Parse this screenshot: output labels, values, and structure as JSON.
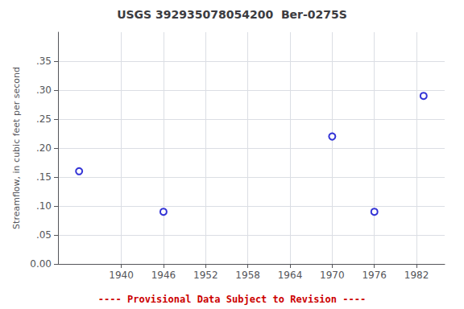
{
  "chart_data": {
    "type": "scatter",
    "title": "USGS 392935078054200  Ber-0275S",
    "ylabel": "Streamflow, in cubic feet per second",
    "x": [
      1934,
      1946,
      1970,
      1976,
      1983
    ],
    "values": [
      0.16,
      0.09,
      0.22,
      0.09,
      0.29
    ],
    "color": "#0000CC",
    "marker": "circle",
    "xlim": [
      1931,
      1986
    ],
    "ylim": [
      0.0,
      0.4
    ],
    "xticks": [
      1940,
      1946,
      1952,
      1958,
      1964,
      1970,
      1976,
      1982
    ],
    "yticks": [
      {
        "value": 0.0,
        "label": "0.00"
      },
      {
        "value": 0.05,
        "label": ".05"
      },
      {
        "value": 0.1,
        "label": ".10"
      },
      {
        "value": 0.15,
        "label": ".15"
      },
      {
        "value": 0.2,
        "label": ".20"
      },
      {
        "value": 0.25,
        "label": ".25"
      },
      {
        "value": 0.3,
        "label": ".30"
      },
      {
        "value": 0.35,
        "label": ".35"
      }
    ],
    "grid": true,
    "annotations": [
      {
        "text": "---- Provisional Data Subject to Revision ----",
        "color": "#cc0000"
      }
    ]
  }
}
